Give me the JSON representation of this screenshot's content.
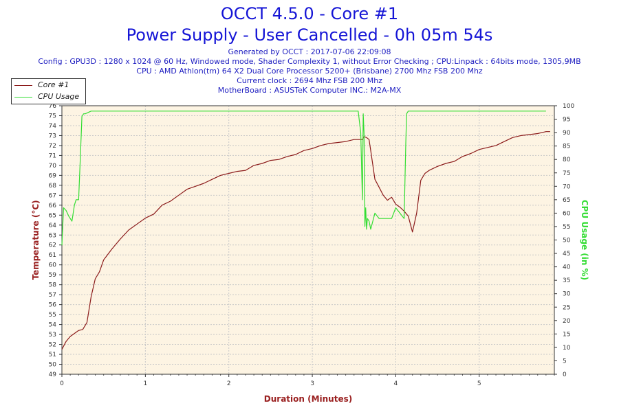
{
  "chart_data": {
    "type": "line",
    "title": "OCCT 4.5.0 - Core #1",
    "subtitle": "Power Supply - User Cancelled - 0h 05m 54s",
    "info_lines": [
      "Generated by OCCT : 2017-07-06 22:09:08",
      "Config : GPU3D : 1280 x 1024 @ 60 Hz, Windowed mode, Shader Complexity 1, without Error Checking ; CPU:Linpack : 64bits mode, 1305,9MB",
      "CPU : AMD Athlon(tm) 64 X2 Dual Core Processor 5200+ (Brisbane) 2700 Mhz FSB 200 Mhz",
      "Current clock : 2694 Mhz FSB 200 Mhz",
      "MotherBoard : ASUSTeK Computer INC.: M2A-MX"
    ],
    "xlabel": "Duration (Minutes)",
    "ylabel": "Temperature (°C)",
    "y2label": "CPU Usage (in %)",
    "xlim": [
      0,
      5.9
    ],
    "ylim": [
      49,
      76
    ],
    "y2lim": [
      0,
      100
    ],
    "x_ticks": [
      0,
      1,
      2,
      3,
      4,
      5
    ],
    "y_ticks": [
      49,
      50,
      51,
      52,
      53,
      54,
      55,
      56,
      57,
      58,
      59,
      60,
      61,
      62,
      63,
      64,
      65,
      66,
      67,
      68,
      69,
      70,
      71,
      72,
      73,
      74,
      75,
      76
    ],
    "y_tick_labels": [
      "49",
      "50",
      "51",
      "52",
      "53",
      "54",
      "55",
      "56",
      "57",
      "58",
      "59",
      "60",
      "61",
      "62",
      "63",
      "64",
      "65",
      "66",
      "67",
      "68",
      "69",
      "70",
      "71",
      "72",
      "73",
      "74",
      "75",
      "76"
    ],
    "y2_ticks": [
      0,
      5,
      10,
      15,
      20,
      25,
      30,
      35,
      40,
      45,
      50,
      55,
      60,
      65,
      70,
      75,
      80,
      85,
      90,
      95,
      100
    ],
    "grid": true,
    "legend_position": "top-left",
    "series": [
      {
        "name": "Core #1",
        "axis": "left",
        "color": "#8b1a1a",
        "x": [
          0,
          0.05,
          0.1,
          0.15,
          0.2,
          0.25,
          0.3,
          0.35,
          0.4,
          0.45,
          0.5,
          0.6,
          0.7,
          0.8,
          0.9,
          1.0,
          1.1,
          1.2,
          1.3,
          1.4,
          1.5,
          1.6,
          1.7,
          1.8,
          1.9,
          2.0,
          2.1,
          2.2,
          2.3,
          2.4,
          2.5,
          2.6,
          2.7,
          2.8,
          2.9,
          3.0,
          3.1,
          3.2,
          3.3,
          3.4,
          3.5,
          3.6,
          3.62,
          3.65,
          3.68,
          3.7,
          3.75,
          3.8,
          3.85,
          3.9,
          3.95,
          4.0,
          4.05,
          4.1,
          4.15,
          4.2,
          4.25,
          4.3,
          4.35,
          4.4,
          4.5,
          4.6,
          4.7,
          4.8,
          4.9,
          5.0,
          5.1,
          5.2,
          5.3,
          5.4,
          5.5,
          5.6,
          5.7,
          5.75,
          5.8,
          5.85
        ],
        "y": [
          51.5,
          52.3,
          52.8,
          53.1,
          53.4,
          53.5,
          54.2,
          56.8,
          58.6,
          59.3,
          60.5,
          61.6,
          62.6,
          63.5,
          64.1,
          64.7,
          65.1,
          66.0,
          66.4,
          67.0,
          67.6,
          67.9,
          68.2,
          68.6,
          69.0,
          69.2,
          69.4,
          69.5,
          70.0,
          70.2,
          70.5,
          70.6,
          70.9,
          71.1,
          71.5,
          71.7,
          72.0,
          72.2,
          72.3,
          72.4,
          72.6,
          72.6,
          72.9,
          72.8,
          72.6,
          71.5,
          68.6,
          67.8,
          67.0,
          66.5,
          66.8,
          66.1,
          65.8,
          65.4,
          64.9,
          63.3,
          65.2,
          68.5,
          69.2,
          69.5,
          69.9,
          70.2,
          70.4,
          70.9,
          71.2,
          71.6,
          71.8,
          72.0,
          72.4,
          72.8,
          73.0,
          73.1,
          73.2,
          73.3,
          73.4,
          73.4
        ]
      },
      {
        "name": "CPU Usage",
        "axis": "right",
        "color": "#33dd33",
        "x": [
          0,
          0.02,
          0.05,
          0.08,
          0.1,
          0.12,
          0.15,
          0.17,
          0.2,
          0.22,
          0.24,
          0.26,
          0.28,
          0.35,
          0.4,
          0.5,
          0.6,
          0.8,
          1.0,
          1.2,
          1.4,
          1.6,
          1.8,
          1.9,
          2.0,
          2.2,
          2.4,
          2.6,
          2.8,
          3.0,
          3.2,
          3.4,
          3.55,
          3.58,
          3.6,
          3.61,
          3.62,
          3.63,
          3.64,
          3.65,
          3.66,
          3.68,
          3.7,
          3.75,
          3.8,
          3.85,
          3.9,
          3.95,
          4.0,
          4.05,
          4.1,
          4.12,
          4.13,
          4.15,
          4.2,
          4.3,
          4.5,
          4.7,
          5.0,
          5.2,
          5.4,
          5.6,
          5.7,
          5.75,
          5.8
        ],
        "y": [
          48,
          62,
          61,
          59,
          58,
          57,
          63,
          65,
          65,
          80,
          96,
          97,
          97,
          98,
          98,
          98,
          98,
          98,
          98,
          98,
          98,
          98,
          98,
          98,
          98,
          98,
          98,
          98,
          98,
          98,
          98,
          98,
          98,
          90,
          65,
          97,
          90,
          55,
          62,
          54,
          58,
          57,
          54,
          60,
          58,
          58,
          58,
          58,
          62,
          60,
          58,
          86,
          97,
          98,
          98,
          98,
          98,
          98,
          98,
          98,
          98,
          98,
          98,
          98,
          98
        ]
      }
    ]
  },
  "legend": {
    "core_label": "Core #1",
    "cpu_label": "CPU Usage"
  }
}
